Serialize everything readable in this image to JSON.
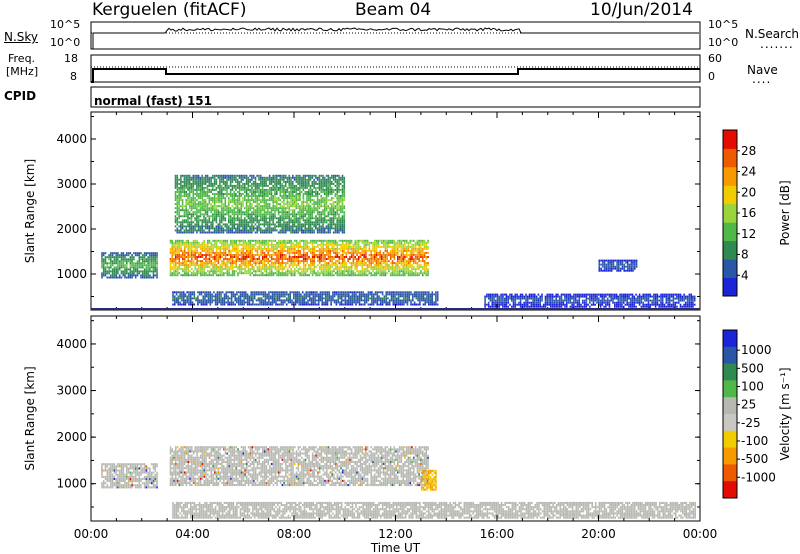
{
  "header": {
    "radar": "Kerguelen (fitACF)",
    "beam": "Beam 04",
    "date": "10/Jun/2014"
  },
  "strips": {
    "sky_label": "N.Sky",
    "sky_ticks": [
      "10^5",
      "10^0"
    ],
    "search_label": "N.Search",
    "search_ticks": [
      "10^5",
      "10^0"
    ],
    "freq_label_1": "Freq.",
    "freq_label_2": "[MHz]",
    "freq_ticks": [
      "18",
      "8"
    ],
    "nave_label": "Nave",
    "nave_ticks": [
      "60",
      "0"
    ],
    "cpid_label": "CPID",
    "cpid_value": "normal (fast) 151"
  },
  "colors": {
    "power": [
      "#1c24d8",
      "#2a56a8",
      "#2f8a50",
      "#4fb848",
      "#9ad43c",
      "#f0cc00",
      "#f69a00",
      "#ee5a00",
      "#e40c00"
    ],
    "velocity": [
      "#1c24d8",
      "#2a56a8",
      "#2f8a50",
      "#4fb848",
      "#b8b8b2",
      "#c8c8c2",
      "#f0cc00",
      "#f69a00",
      "#ee5a00",
      "#e40c00"
    ],
    "ground_scatter": "#b8b8b2"
  },
  "chart_data": [
    {
      "type": "heatmap",
      "name": "power",
      "xlabel": "",
      "ylabel": "Slant Range [km]",
      "xlim": [
        "00:00",
        "24:00"
      ],
      "ylim": [
        200,
        4600
      ],
      "y_ticks": [
        "1000",
        "2000",
        "3000",
        "4000"
      ],
      "colorbar": {
        "label": "Power [dB]",
        "ticks": [
          "4",
          "8",
          "12",
          "16",
          "20",
          "24",
          "28"
        ],
        "range": [
          0,
          32
        ]
      },
      "regions": [
        {
          "t0": 3.1,
          "t1": 13.3,
          "r0": 950,
          "r1": 1750,
          "peak": 30,
          "desc": "main echo band"
        },
        {
          "t0": 0.4,
          "t1": 2.6,
          "r0": 900,
          "r1": 1450,
          "peak": 14
        },
        {
          "t0": 3.2,
          "t1": 13.7,
          "r0": 300,
          "r1": 600,
          "peak": 8
        },
        {
          "t0": 15.5,
          "t1": 23.8,
          "r0": 250,
          "r1": 550,
          "peak": 5
        },
        {
          "t0": 20.0,
          "t1": 21.5,
          "r0": 1050,
          "r1": 1300,
          "peak": 6
        },
        {
          "t0": 3.3,
          "t1": 10.0,
          "r0": 1900,
          "r1": 3200,
          "peak": 16
        }
      ]
    },
    {
      "type": "heatmap",
      "name": "velocity",
      "xlabel": "Time UT",
      "ylabel": "Slant Range [km]",
      "xlim": [
        "00:00",
        "24:00"
      ],
      "ylim": [
        200,
        4600
      ],
      "x_ticks": [
        "00:00",
        "04:00",
        "08:00",
        "12:00",
        "16:00",
        "20:00",
        "00:00"
      ],
      "y_ticks": [
        "1000",
        "2000",
        "3000",
        "4000"
      ],
      "colorbar": {
        "label": "Velocity [m s⁻¹]",
        "ticks": [
          "1000",
          "500",
          "100",
          "25",
          "-25",
          "-100",
          "-500",
          "-1000"
        ],
        "range": [
          -1000,
          1000
        ]
      },
      "regions": [
        {
          "t0": 3.1,
          "t1": 13.3,
          "r0": 950,
          "r1": 1800,
          "value": 0,
          "desc": "ground scatter band"
        },
        {
          "t0": 0.4,
          "t1": 2.6,
          "r0": 900,
          "r1": 1400,
          "value": 0
        },
        {
          "t0": 13.0,
          "t1": 13.6,
          "r0": 850,
          "r1": 1300,
          "value": -400
        },
        {
          "t0": 3.2,
          "t1": 23.8,
          "r0": 250,
          "r1": 600,
          "value": 60
        }
      ]
    }
  ]
}
